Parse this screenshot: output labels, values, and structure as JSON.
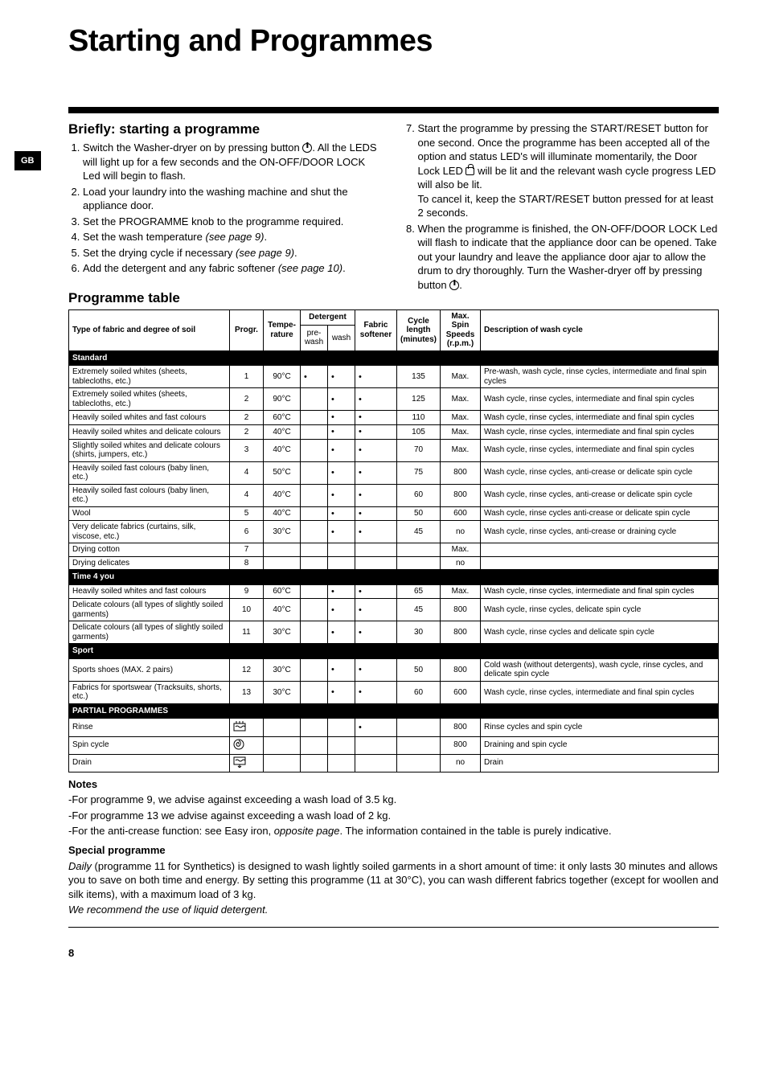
{
  "gb_label": "GB",
  "main_title": "Starting and Programmes",
  "section_briefly": "Briefly: starting a programme",
  "steps_left": [
    "Switch the Washer-dryer on by pressing button {POWER}. All the LEDS will light up for a few seconds and the ON-OFF/DOOR LOCK Led will begin to flash.",
    "Load your laundry into the washing machine and shut the appliance door.",
    "Set the PROGRAMME knob to the programme required.",
    "Set the wash temperature (see page 9).",
    "Set the drying cycle if necessary (see page 9).",
    "Add the detergent and any fabric softener (see page 10)."
  ],
  "steps_right_start": 7,
  "steps_right": [
    "Start the programme by pressing the START/RESET button for one second. Once the programme has been accepted all of the option and status LED's will illuminate momentarily, the Door Lock LED {LOCK} will be lit and the relevant wash cycle progress LED will also be lit.\nTo cancel it, keep the START/RESET button pressed for at least 2 seconds.",
    "When the programme is finished, the ON-OFF/DOOR LOCK Led will flash to indicate that the appliance door can be opened. Take out your laundry and leave the appliance door ajar to allow the drum to dry thoroughly. Turn the Washer-dryer off by pressing button {POWER}."
  ],
  "section_table": "Programme table",
  "table": {
    "head_fabric": "Type of fabric and degree of soil",
    "head_progr": "Progr.",
    "head_temp": "Tempe-rature",
    "head_detergent": "Detergent",
    "head_prewash": "pre-wash",
    "head_wash": "wash",
    "head_softener": "Fabric softener",
    "head_length": "Cycle length (minutes)",
    "head_spin": "Max. Spin Speeds (r.p.m.)",
    "head_desc": "Description of wash cycle",
    "sections": [
      {
        "title": "Standard",
        "rows": [
          {
            "fabric": "Extremely soiled whites (sheets, tablecloths, etc.)",
            "progr": "1",
            "temp": "90°C",
            "pre": "•",
            "wash": "•",
            "soft": "•",
            "len": "135",
            "spin": "Max.",
            "desc": "Pre-wash, wash cycle, rinse cycles, intermediate and final spin cycles"
          },
          {
            "fabric": "Extremely soiled whites (sheets, tablecloths, etc.)",
            "progr": "2",
            "temp": "90°C",
            "pre": "",
            "wash": "•",
            "soft": "•",
            "len": "125",
            "spin": "Max.",
            "desc": "Wash cycle, rinse cycles, intermediate and final spin cycles"
          },
          {
            "fabric": "Heavily soiled whites and fast colours",
            "progr": "2",
            "temp": "60°C",
            "pre": "",
            "wash": "•",
            "soft": "•",
            "len": "110",
            "spin": "Max.",
            "desc": "Wash cycle, rinse cycles, intermediate and final spin cycles"
          },
          {
            "fabric": "Heavily soiled whites and delicate colours",
            "progr": "2",
            "temp": "40°C",
            "pre": "",
            "wash": "•",
            "soft": "•",
            "len": "105",
            "spin": "Max.",
            "desc": "Wash cycle, rinse cycles, intermediate and final spin cycles"
          },
          {
            "fabric": "Slightly soiled whites and delicate colours (shirts, jumpers, etc.)",
            "progr": "3",
            "temp": "40°C",
            "pre": "",
            "wash": "•",
            "soft": "•",
            "len": "70",
            "spin": "Max.",
            "desc": "Wash cycle, rinse cycles, intermediate and final spin cycles"
          },
          {
            "fabric": "Heavily soiled fast colours (baby linen, etc.)",
            "progr": "4",
            "temp": "50°C",
            "pre": "",
            "wash": "•",
            "soft": "•",
            "len": "75",
            "spin": "800",
            "desc": "Wash cycle, rinse cycles, anti-crease or delicate spin cycle"
          },
          {
            "fabric": "Heavily soiled fast colours (baby linen, etc.)",
            "progr": "4",
            "temp": "40°C",
            "pre": "",
            "wash": "•",
            "soft": "•",
            "len": "60",
            "spin": "800",
            "desc": "Wash cycle, rinse cycles, anti-crease or delicate spin cycle"
          },
          {
            "fabric": "Wool",
            "progr": "5",
            "temp": "40°C",
            "pre": "",
            "wash": "•",
            "soft": "•",
            "len": "50",
            "spin": "600",
            "desc": "Wash cycle, rinse cycles anti-crease or delicate spin cycle"
          },
          {
            "fabric": "Very delicate fabrics (curtains, silk, viscose, etc.)",
            "progr": "6",
            "temp": "30°C",
            "pre": "",
            "wash": "•",
            "soft": "•",
            "len": "45",
            "spin": "no",
            "desc": "Wash cycle, rinse cycles, anti-crease or draining cycle"
          },
          {
            "fabric": "Drying cotton",
            "progr": "7",
            "temp": "",
            "pre": "",
            "wash": "",
            "soft": "",
            "len": "",
            "spin": "Max.",
            "desc": ""
          },
          {
            "fabric": "Drying delicates",
            "progr": "8",
            "temp": "",
            "pre": "",
            "wash": "",
            "soft": "",
            "len": "",
            "spin": "no",
            "desc": ""
          }
        ]
      },
      {
        "title": "Time 4 you",
        "rows": [
          {
            "fabric": "Heavily soiled whites and fast colours",
            "progr": "9",
            "temp": "60°C",
            "pre": "",
            "wash": "•",
            "soft": "•",
            "len": "65",
            "spin": "Max.",
            "desc": "Wash cycle, rinse cycles, intermediate and final spin cycles"
          },
          {
            "fabric": "Delicate colours (all types of slightly soiled garments)",
            "progr": "10",
            "temp": "40°C",
            "pre": "",
            "wash": "•",
            "soft": "•",
            "len": "45",
            "spin": "800",
            "desc": "Wash cycle, rinse cycles, delicate spin cycle"
          },
          {
            "fabric": "Delicate colours (all types of slightly soiled garments)",
            "progr": "11",
            "temp": "30°C",
            "pre": "",
            "wash": "•",
            "soft": "•",
            "len": "30",
            "spin": "800",
            "desc": "Wash cycle, rinse cycles and delicate spin cycle"
          }
        ]
      },
      {
        "title": "Sport",
        "rows": [
          {
            "fabric": "Sports shoes (MAX. 2 pairs)",
            "progr": "12",
            "temp": "30°C",
            "pre": "",
            "wash": "•",
            "soft": "•",
            "len": "50",
            "spin": "800",
            "desc": "Cold wash (without detergents), wash cycle, rinse cycles, and delicate spin cycle"
          },
          {
            "fabric": "Fabrics for sportswear (Tracksuits, shorts, etc.)",
            "progr": "13",
            "temp": "30°C",
            "pre": "",
            "wash": "•",
            "soft": "•",
            "len": "60",
            "spin": "600",
            "desc": "Wash cycle, rinse cycles, intermediate and final spin cycles"
          }
        ]
      },
      {
        "title": "PARTIAL PROGRAMMES",
        "rows": [
          {
            "fabric": "Rinse",
            "progr_icon": "rinse",
            "temp": "",
            "pre": "",
            "wash": "",
            "soft": "•",
            "len": "",
            "spin": "800",
            "desc": "Rinse cycles and spin cycle"
          },
          {
            "fabric": "Spin cycle",
            "progr_icon": "spin",
            "temp": "",
            "pre": "",
            "wash": "",
            "soft": "",
            "len": "",
            "spin": "800",
            "desc": "Draining and spin cycle"
          },
          {
            "fabric": "Drain",
            "progr_icon": "drain",
            "temp": "",
            "pre": "",
            "wash": "",
            "soft": "",
            "len": "",
            "spin": "no",
            "desc": "Drain"
          }
        ]
      }
    ]
  },
  "notes_h": "Notes",
  "notes": [
    "-For programme 9, we advise against exceeding a wash load of 3.5 kg.",
    "-For programme 13 we advise against exceeding a wash load of 2 kg.",
    "-For the anti-crease function: see Easy iron, opposite page. The information contained in the table is purely indicative."
  ],
  "special_h": "Special programme",
  "special_text": "Daily (programme 11 for Synthetics) is designed to wash lightly soiled garments in a short amount of time: it only lasts 30 minutes and allows you to save on both time and energy. By setting this programme (11 at 30°C), you can wash different fabrics together (except for woollen and silk items), with a maximum load of 3 kg.",
  "special_tail": "We recommend the use of liquid detergent.",
  "page_number": "8"
}
